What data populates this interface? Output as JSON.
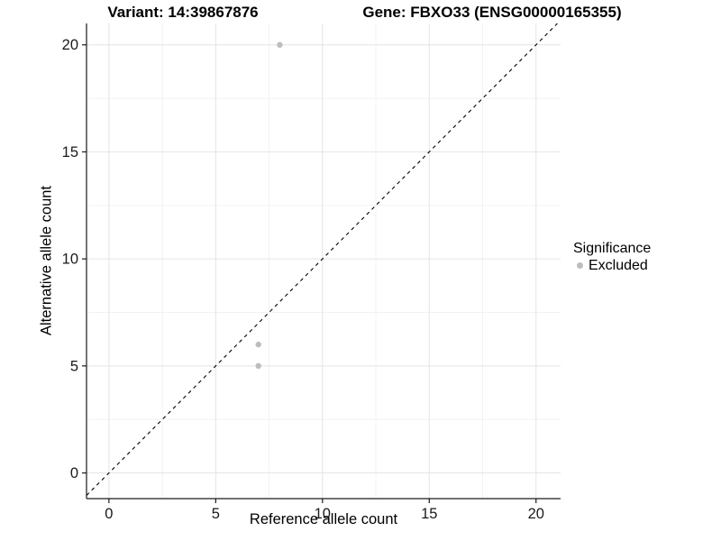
{
  "chart_data": {
    "type": "scatter",
    "title_left": "Variant: 14:39867876",
    "title_right": "Gene: FBXO33 (ENSG00000165355)",
    "xlabel": "Reference allele count",
    "ylabel": "Alternative allele count",
    "xlim": [
      -1.05,
      21.15
    ],
    "ylim": [
      -1.2,
      21.0
    ],
    "x_ticks": [
      0,
      5,
      10,
      15,
      20
    ],
    "y_ticks": [
      0,
      5,
      10,
      15,
      20
    ],
    "x_minor_ticks": [
      2.5,
      7.5,
      12.5,
      17.5
    ],
    "y_minor_ticks": [
      2.5,
      7.5,
      12.5,
      17.5
    ],
    "grid": true,
    "series": [
      {
        "name": "Excluded",
        "color": "#bdbdbd",
        "points": [
          {
            "x": 8,
            "y": 20
          },
          {
            "x": 7,
            "y": 6
          },
          {
            "x": 7,
            "y": 5
          }
        ]
      }
    ],
    "identity_line": {
      "slope": 1,
      "intercept": 0,
      "style": "dashed",
      "color": "#000000"
    },
    "legend": {
      "title": "Significance",
      "position": "right",
      "entries": [
        {
          "label": "Excluded",
          "color": "#bdbdbd"
        }
      ]
    },
    "colors": {
      "major_grid": "#e4e4e4",
      "minor_grid": "#f2f2f2",
      "axis_line": "#1a1a1a",
      "tick_text": "#1a1a1a"
    }
  }
}
